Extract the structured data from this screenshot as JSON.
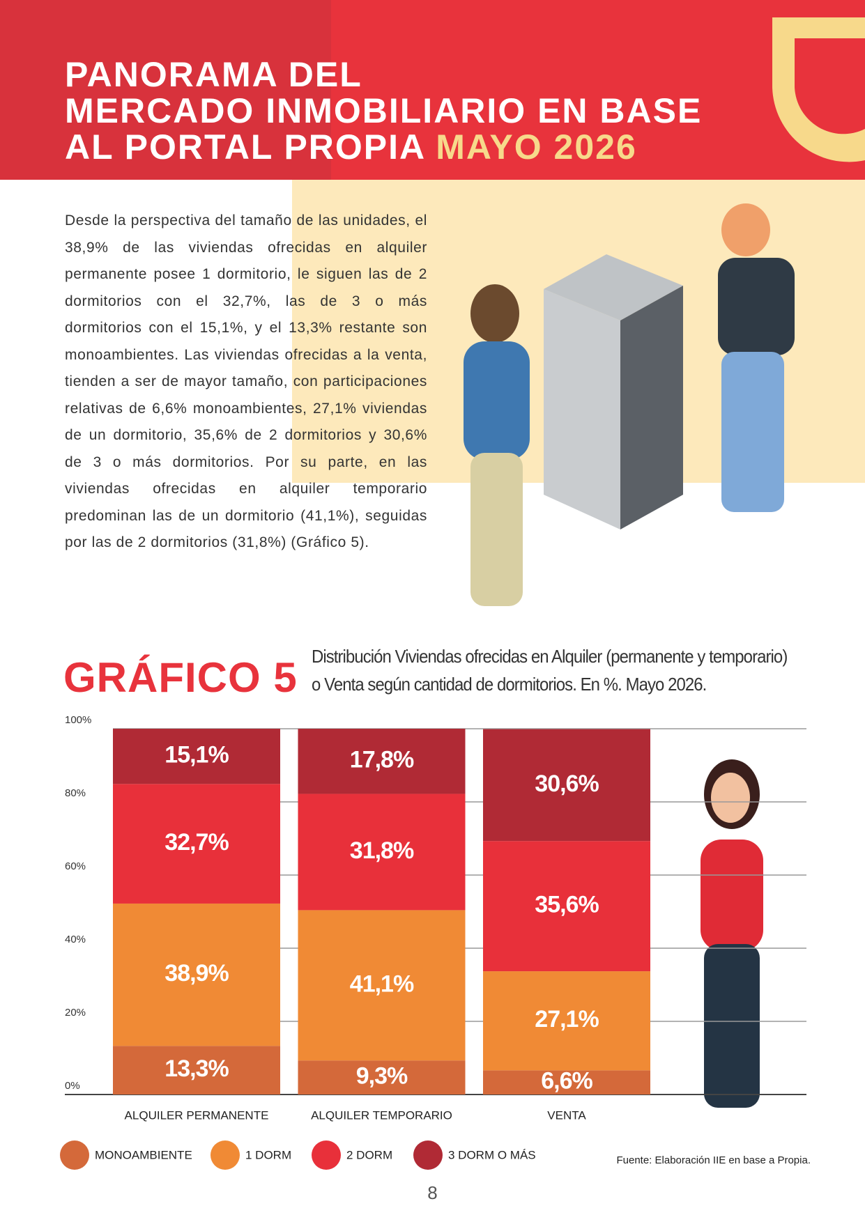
{
  "header": {
    "title_lines": [
      "PANORAMA DEL",
      "MERCADO INMOBILIARIO EN BASE",
      "AL PORTAL PROPIA"
    ],
    "highlight": "MAYO 2026"
  },
  "body": {
    "paragraph": "Desde la perspectiva del tamaño de las unidades, el 38,9% de las viviendas ofrecidas en alquiler permanente posee 1 dormitorio, le siguen las de 2 dormitorios con el 32,7%, las de 3 o más dormitorios con el 15,1%, y el 13,3% restante son monoambientes. Las viviendas ofrecidas a la venta, tienden a ser de mayor tamaño, con participaciones relativas de 6,6% monoambientes, 27,1% viviendas de un dormitorio, 35,6% de 2 dormitorios y 30,6% de 3 o más dormitorios. Por su parte, en las viviendas ofrecidas en alquiler temporario predominan las de un dormitorio (41,1%), seguidas por las de 2 dormitorios (31,8%) (Gráfico 5)."
  },
  "chart_data": {
    "type": "bar",
    "stacked": true,
    "label": "GRÁFICO 5",
    "title": "Distribución Viviendas ofrecidas en Alquiler (permanente y temporario) o Venta según cantidad de dormitorios. En %. Mayo 2026.",
    "categories": [
      "ALQUILER PERMANENTE",
      "ALQUILER TEMPORARIO",
      "VENTA"
    ],
    "series": [
      {
        "name": "MONOAMBIENTE",
        "color": "#d4693a",
        "values": [
          13.3,
          9.3,
          6.6
        ],
        "value_labels": [
          "13,3%",
          "9,3%",
          "6,6%"
        ]
      },
      {
        "name": "1 DORM",
        "color": "#f08a35",
        "values": [
          38.9,
          41.1,
          27.1
        ],
        "value_labels": [
          "38,9%",
          "41,1%",
          "27,1%"
        ]
      },
      {
        "name": "2 DORM",
        "color": "#e8303a",
        "values": [
          32.7,
          31.8,
          35.6
        ],
        "value_labels": [
          "32,7%",
          "31,8%",
          "35,6%"
        ]
      },
      {
        "name": "3 DORM O MÁS",
        "color": "#b02a35",
        "values": [
          15.1,
          17.8,
          30.6
        ],
        "value_labels": [
          "15,1%",
          "17,8%",
          "30,6%"
        ]
      }
    ],
    "ylim": [
      0,
      100
    ],
    "yticks": [
      {
        "value": 0,
        "label": "0%"
      },
      {
        "value": 20,
        "label": "20%"
      },
      {
        "value": 40,
        "label": "40%"
      },
      {
        "value": 60,
        "label": "60%"
      },
      {
        "value": 80,
        "label": "80%"
      },
      {
        "value": 100,
        "label": "100%"
      }
    ],
    "grid": true,
    "source": "Fuente: Elaboración IIE en base a Propia."
  },
  "page_number": "8"
}
